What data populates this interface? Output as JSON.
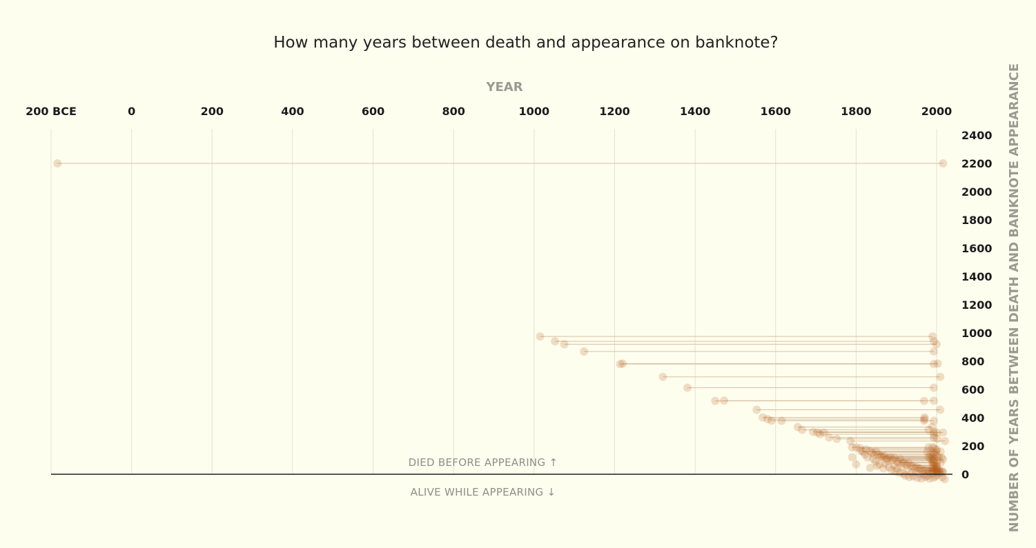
{
  "chart_data": {
    "type": "scatter",
    "title": "How many years between death and appearance on banknote?",
    "xlabel": "YEAR",
    "ylabel": "NUMBER OF YEARS BETWEEN DEATH AND BANKNOTE APPEARANCE",
    "xlim": [
      -200,
      2050
    ],
    "ylim": [
      -50,
      2400
    ],
    "x_ticks": [
      -200,
      0,
      200,
      400,
      600,
      800,
      1000,
      1200,
      1400,
      1600,
      1800,
      2000
    ],
    "x_tick_labels": [
      "200 BCE",
      "0",
      "200",
      "400",
      "600",
      "800",
      "1000",
      "1200",
      "1400",
      "1600",
      "1800",
      "2000"
    ],
    "y_ticks": [
      0,
      200,
      400,
      600,
      800,
      1000,
      1200,
      1400,
      1600,
      1800,
      2000,
      2200,
      2400
    ],
    "y_tick_labels": [
      "0",
      "200",
      "400",
      "600",
      "800",
      "1000",
      "1200",
      "1400",
      "1600",
      "1800",
      "2000",
      "2200",
      "2400"
    ],
    "annotations": {
      "above": "DIED BEFORE APPEARING ↑",
      "below": "ALIVE WHILE APPEARING ↓"
    },
    "grid": "vertical",
    "point_color": "#b25a14",
    "line_color": "#d8bfa0",
    "series": [
      {
        "type": "died-appeared pairs",
        "pairs": [
          [
            -184,
            2016,
            2200
          ],
          [
            1015,
            1990,
            975
          ],
          [
            1052,
            1993,
            941
          ],
          [
            1075,
            2000,
            920
          ],
          [
            1124,
            1993,
            869
          ],
          [
            1214,
            1993,
            780
          ],
          [
            1220,
            2003,
            783
          ],
          [
            1320,
            2009,
            689
          ],
          [
            1381,
            1993,
            612
          ],
          [
            1450,
            1969,
            519
          ],
          [
            1472,
            1993,
            521
          ],
          [
            1553,
            2009,
            456
          ],
          [
            1568,
            1970,
            402
          ],
          [
            1580,
            1970,
            390
          ],
          [
            1590,
            1969,
            379
          ],
          [
            1615,
            1993,
            378
          ],
          [
            1655,
            1989,
            334
          ],
          [
            1666,
            1980,
            314
          ],
          [
            1693,
            1993,
            300
          ],
          [
            1704,
            2000,
            296
          ],
          [
            1710,
            1993,
            283
          ],
          [
            1720,
            2016,
            296
          ],
          [
            1733,
            1993,
            260
          ],
          [
            1752,
            2002,
            250
          ],
          [
            1786,
            2021,
            235
          ],
          [
            1790,
            1980,
            190
          ],
          [
            1800,
            1990,
            190
          ],
          [
            1810,
            1995,
            185
          ],
          [
            1817,
            1977,
            160
          ],
          [
            1825,
            2000,
            175
          ],
          [
            1835,
            1999,
            164
          ],
          [
            1840,
            1992,
            152
          ],
          [
            1845,
            1985,
            140
          ],
          [
            1850,
            2010,
            160
          ],
          [
            1855,
            1995,
            140
          ],
          [
            1860,
            1980,
            120
          ],
          [
            1865,
            1990,
            125
          ],
          [
            1870,
            2000,
            130
          ],
          [
            1875,
            1985,
            110
          ],
          [
            1880,
            1993,
            113
          ],
          [
            1885,
            2005,
            120
          ],
          [
            1890,
            1990,
            100
          ],
          [
            1895,
            2012,
            117
          ],
          [
            1900,
            1993,
            93
          ],
          [
            1905,
            1990,
            85
          ],
          [
            1910,
            2016,
            106
          ],
          [
            1915,
            1995,
            80
          ],
          [
            1920,
            2000,
            80
          ],
          [
            1925,
            1990,
            65
          ],
          [
            1930,
            2010,
            80
          ],
          [
            1935,
            1995,
            60
          ],
          [
            1940,
            2000,
            60
          ],
          [
            1945,
            1990,
            45
          ],
          [
            1950,
            2000,
            50
          ],
          [
            1955,
            1995,
            40
          ],
          [
            1960,
            2000,
            40
          ],
          [
            1965,
            1990,
            25
          ],
          [
            1970,
            2000,
            30
          ],
          [
            1975,
            2005,
            30
          ],
          [
            1980,
            2000,
            20
          ],
          [
            1985,
            2005,
            20
          ],
          [
            1990,
            2010,
            20
          ],
          [
            1995,
            2015,
            20
          ],
          [
            2000,
            2015,
            15
          ]
        ]
      },
      {
        "type": "single appearances",
        "points": [
          [
            1790,
            120
          ],
          [
            1800,
            70
          ],
          [
            1812,
            165
          ],
          [
            1822,
            140
          ],
          [
            1828,
            120
          ],
          [
            1835,
            45
          ],
          [
            1842,
            110
          ],
          [
            1848,
            90
          ],
          [
            1852,
            60
          ],
          [
            1858,
            70
          ],
          [
            1862,
            130
          ],
          [
            1868,
            40
          ],
          [
            1872,
            75
          ],
          [
            1878,
            95
          ],
          [
            1882,
            50
          ],
          [
            1888,
            30
          ],
          [
            1894,
            65
          ],
          [
            1898,
            20
          ],
          [
            1902,
            40
          ],
          [
            1908,
            10
          ],
          [
            1912,
            55
          ],
          [
            1918,
            5
          ],
          [
            1922,
            -10
          ],
          [
            1928,
            30
          ],
          [
            1932,
            -20
          ],
          [
            1938,
            10
          ],
          [
            1942,
            -15
          ],
          [
            1948,
            15
          ],
          [
            1952,
            -25
          ],
          [
            1958,
            5
          ],
          [
            1962,
            -30
          ],
          [
            1968,
            0
          ],
          [
            1972,
            -20
          ],
          [
            1978,
            -10
          ],
          [
            1982,
            -30
          ],
          [
            1988,
            5
          ],
          [
            1992,
            -25
          ],
          [
            1998,
            -15
          ],
          [
            2002,
            -5
          ],
          [
            2008,
            10
          ],
          [
            2014,
            -20
          ],
          [
            2020,
            -35
          ]
        ]
      }
    ]
  }
}
